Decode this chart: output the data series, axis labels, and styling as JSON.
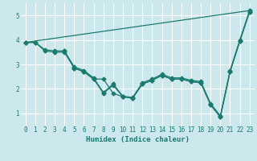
{
  "xlabel": "Humidex (Indice chaleur)",
  "bg_color": "#cce8ec",
  "grid_color": "#ffffff",
  "line_color": "#1a7a6e",
  "xlim": [
    -0.5,
    23.5
  ],
  "ylim": [
    0.5,
    5.5
  ],
  "xticks": [
    0,
    1,
    2,
    3,
    4,
    5,
    6,
    7,
    8,
    9,
    10,
    11,
    12,
    13,
    14,
    15,
    16,
    17,
    18,
    19,
    20,
    21,
    22,
    23
  ],
  "yticks": [
    1,
    2,
    3,
    4,
    5
  ],
  "line1_x": [
    0,
    23
  ],
  "line1_y": [
    3.9,
    5.2
  ],
  "line2_x": [
    0,
    1,
    2,
    3,
    4,
    5,
    6,
    7,
    8,
    9,
    10,
    11,
    12,
    13,
    14,
    15,
    16,
    17,
    18,
    19,
    20,
    21,
    22,
    23
  ],
  "line2_y": [
    3.9,
    3.9,
    3.6,
    3.55,
    3.55,
    2.9,
    2.75,
    2.45,
    1.85,
    2.2,
    1.7,
    1.65,
    2.25,
    2.4,
    2.6,
    2.45,
    2.45,
    2.35,
    2.3,
    1.4,
    0.9,
    2.75,
    4.0,
    5.2
  ],
  "line3_x": [
    0,
    1,
    2,
    3,
    4,
    5,
    6,
    7,
    8,
    9,
    10,
    11,
    12,
    13,
    14,
    15,
    16,
    17,
    18,
    19,
    20,
    21,
    22,
    23
  ],
  "line3_y": [
    3.9,
    3.9,
    3.55,
    3.5,
    3.5,
    2.85,
    2.7,
    2.4,
    1.82,
    2.15,
    1.68,
    1.62,
    2.2,
    2.35,
    2.55,
    2.4,
    2.4,
    2.3,
    2.25,
    1.35,
    0.85,
    2.7,
    3.95,
    5.15
  ],
  "line4_x": [
    4,
    5,
    6,
    7,
    8,
    9,
    10,
    11,
    12,
    13,
    14,
    15,
    16,
    17,
    18,
    19,
    20,
    21,
    22,
    23
  ],
  "line4_y": [
    3.55,
    2.85,
    2.7,
    2.4,
    2.4,
    1.82,
    1.68,
    1.62,
    2.2,
    2.35,
    2.55,
    2.4,
    2.4,
    2.3,
    2.25,
    1.35,
    0.85,
    2.7,
    3.95,
    5.15
  ],
  "marker": "D",
  "markersize": 2.5,
  "linewidth": 0.9
}
